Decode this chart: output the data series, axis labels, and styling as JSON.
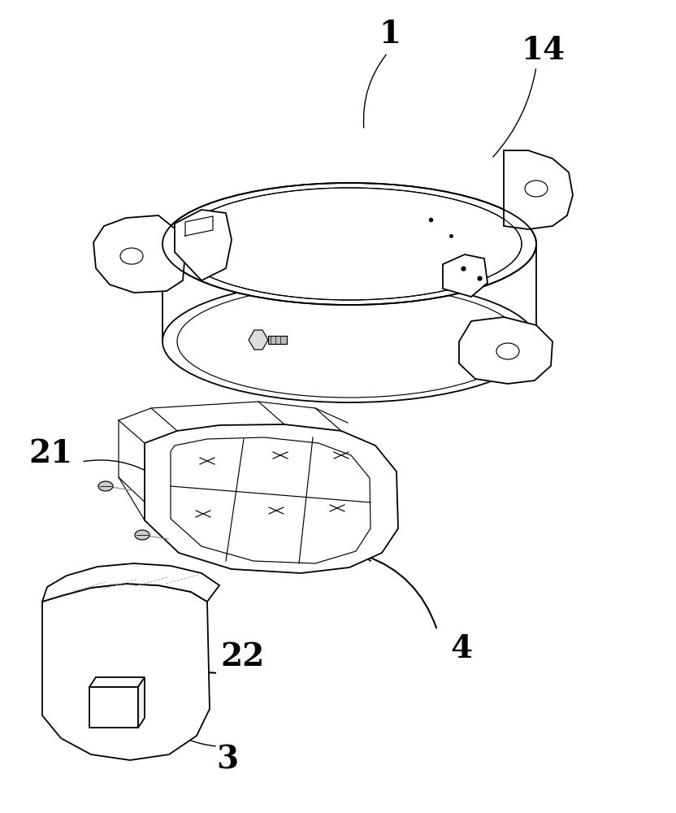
{
  "background_color": "#ffffff",
  "line_color": "#000000",
  "label_fontsize": 28,
  "fig_width": 8.32,
  "fig_height": 10.0,
  "dpi": 100
}
